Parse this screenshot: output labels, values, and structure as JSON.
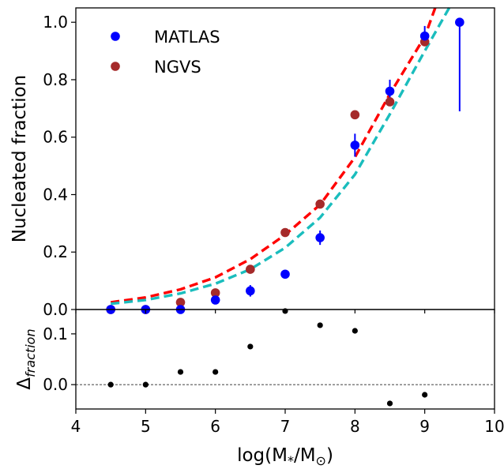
{
  "colors": {
    "matlas": "#0000ff",
    "ngvs": "#a52a2a",
    "fit_red": "#ff0000",
    "fit_cyan": "#1abdbd",
    "residual": "#000000"
  },
  "chart_data": [
    {
      "type": "scatter",
      "panel": "top",
      "ylabel": "Nucleated fraction",
      "xlim": [
        4,
        10
      ],
      "ylim": [
        0,
        1.05
      ],
      "xticks": [
        "4",
        "5",
        "6",
        "7",
        "8",
        "9",
        "10"
      ],
      "yticks": [
        "0.0",
        "0.2",
        "0.4",
        "0.6",
        "0.8",
        "1.0"
      ],
      "legend_position": "upper-left",
      "series": [
        {
          "name": "MATLAS",
          "color_key": "matlas",
          "points": [
            {
              "x": 4.5,
              "y": 0.0,
              "err": 0.005
            },
            {
              "x": 5.0,
              "y": 0.0,
              "err": 0.005
            },
            {
              "x": 5.5,
              "y": 0.0,
              "err": 0.008
            },
            {
              "x": 6.0,
              "y": 0.033,
              "err": 0.015
            },
            {
              "x": 6.5,
              "y": 0.065,
              "err": 0.02
            },
            {
              "x": 7.0,
              "y": 0.123,
              "err": 0.015
            },
            {
              "x": 7.5,
              "y": 0.25,
              "err": 0.025
            },
            {
              "x": 8.0,
              "y": 0.572,
              "err": 0.04
            },
            {
              "x": 8.5,
              "y": 0.76,
              "err": 0.04
            },
            {
              "x": 9.0,
              "y": 0.952,
              "err": 0.035
            },
            {
              "x": 9.5,
              "y": 1.0,
              "err_low": 0.31,
              "err_high": 0.0
            }
          ]
        },
        {
          "name": "NGVS",
          "color_key": "ngvs",
          "points": [
            {
              "x": 4.5,
              "y": 0.0
            },
            {
              "x": 5.0,
              "y": 0.0
            },
            {
              "x": 5.5,
              "y": 0.025
            },
            {
              "x": 6.0,
              "y": 0.058
            },
            {
              "x": 6.5,
              "y": 0.14
            },
            {
              "x": 7.0,
              "y": 0.268
            },
            {
              "x": 7.5,
              "y": 0.367
            },
            {
              "x": 8.0,
              "y": 0.678
            },
            {
              "x": 8.5,
              "y": 0.723
            },
            {
              "x": 9.0,
              "y": 0.932
            }
          ]
        }
      ],
      "fits": [
        {
          "color_key": "fit_red",
          "style": "dashed",
          "points": [
            [
              4.5,
              0.025
            ],
            [
              5.0,
              0.042
            ],
            [
              5.5,
              0.07
            ],
            [
              6.0,
              0.112
            ],
            [
              6.5,
              0.175
            ],
            [
              7.0,
              0.26
            ],
            [
              7.5,
              0.365
            ],
            [
              8.0,
              0.53
            ],
            [
              8.5,
              0.75
            ],
            [
              9.0,
              0.95
            ],
            [
              9.15,
              1.05
            ]
          ]
        },
        {
          "color_key": "fit_cyan",
          "style": "dashed",
          "points": [
            [
              4.5,
              0.02
            ],
            [
              5.0,
              0.033
            ],
            [
              5.5,
              0.056
            ],
            [
              6.0,
              0.09
            ],
            [
              6.5,
              0.14
            ],
            [
              7.0,
              0.215
            ],
            [
              7.5,
              0.32
            ],
            [
              8.0,
              0.47
            ],
            [
              8.5,
              0.68
            ],
            [
              9.0,
              0.9
            ],
            [
              9.35,
              1.05
            ]
          ]
        }
      ]
    },
    {
      "type": "scatter",
      "panel": "bottom",
      "ylabel_main": "Δ",
      "ylabel_sub": "fraction",
      "xlabel": "log(M",
      "xlabel_sub": "*",
      "xlabel_tail": "/M",
      "xlabel_sun": "⊙",
      "xlabel_end": ")",
      "xlim": [
        4,
        10
      ],
      "ylim": [
        -0.048,
        0.148
      ],
      "xticks": [
        "4",
        "5",
        "6",
        "7",
        "8",
        "9",
        "10"
      ],
      "yticks": [
        "0.0",
        "0.1"
      ],
      "reference_line": 0,
      "points": [
        {
          "x": 4.5,
          "y": 0.0
        },
        {
          "x": 5.0,
          "y": 0.0
        },
        {
          "x": 5.5,
          "y": 0.025
        },
        {
          "x": 6.0,
          "y": 0.025
        },
        {
          "x": 6.5,
          "y": 0.075
        },
        {
          "x": 7.0,
          "y": 0.145
        },
        {
          "x": 7.5,
          "y": 0.117
        },
        {
          "x": 8.0,
          "y": 0.106
        },
        {
          "x": 8.5,
          "y": -0.037
        },
        {
          "x": 9.0,
          "y": -0.02
        }
      ]
    }
  ]
}
